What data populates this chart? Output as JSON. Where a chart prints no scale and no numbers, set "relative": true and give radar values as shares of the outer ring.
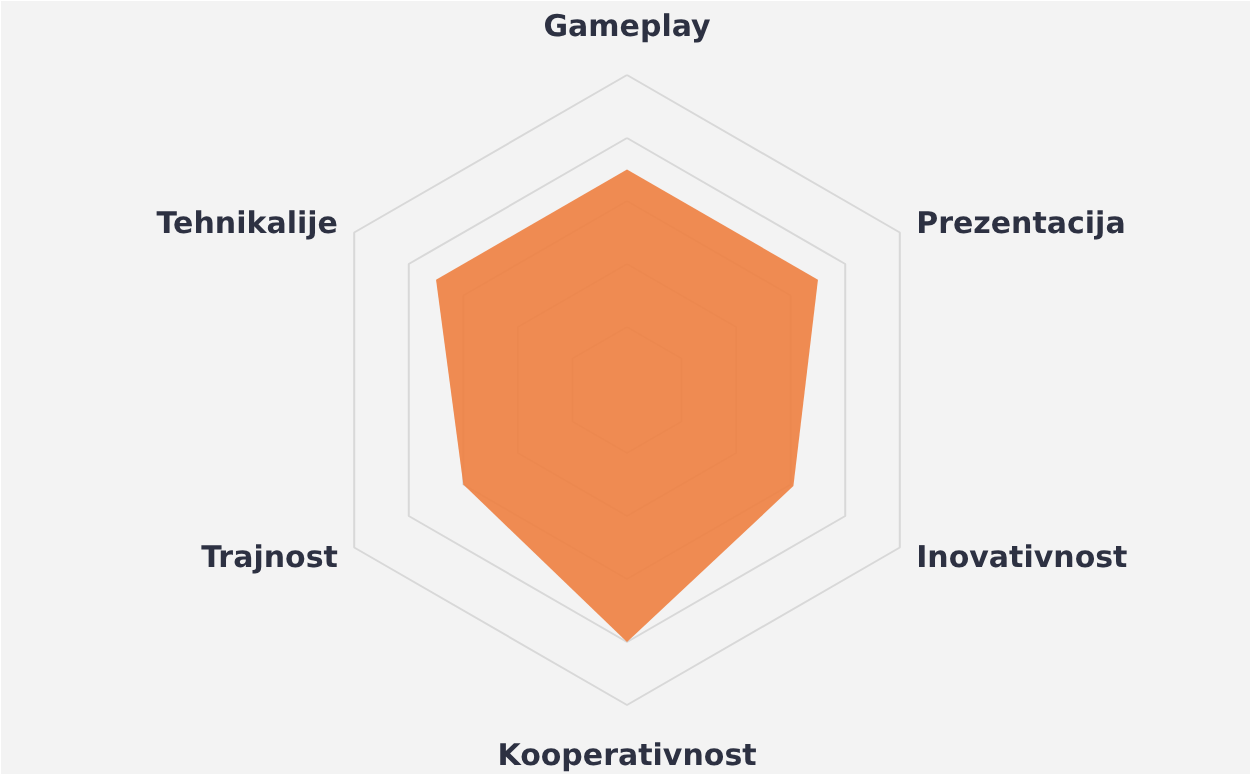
{
  "chart_data": {
    "type": "radar",
    "relative": true,
    "grid": true,
    "categories": [
      "Gameplay",
      "Prezentacija",
      "Inovativnost",
      "Kooperativnost",
      "Trajnost",
      "Tehnikalije"
    ],
    "series": [
      {
        "color": "#ee8040",
        "values": [
          0.7,
          0.7,
          0.61,
          0.8,
          0.6,
          0.7
        ]
      }
    ]
  }
}
